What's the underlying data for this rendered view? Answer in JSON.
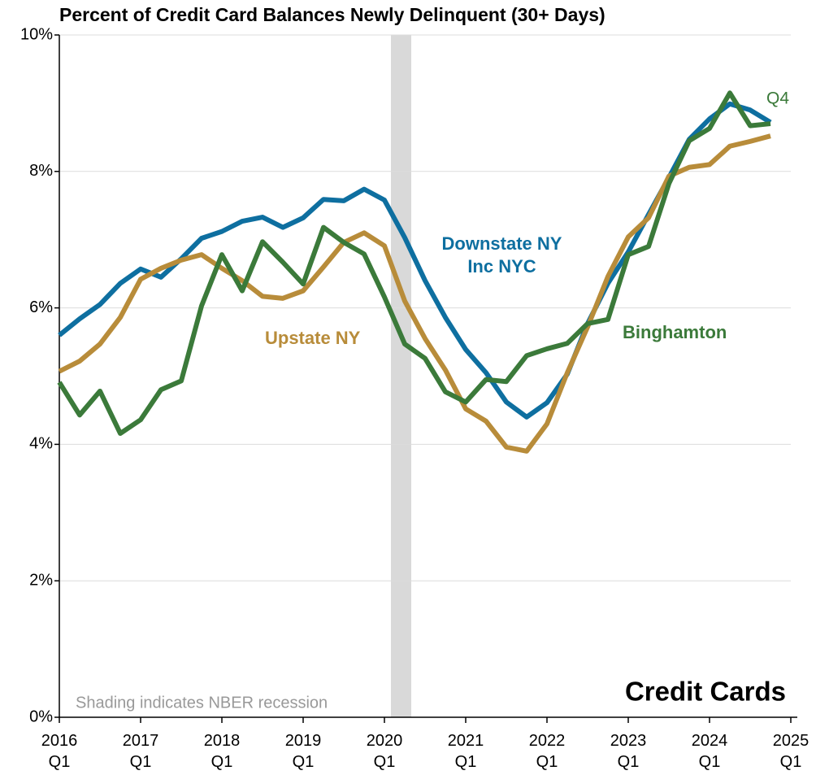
{
  "chart_data": {
    "type": "line",
    "title": "Percent of Credit Card Balances Newly Delinquent (30+ Days)",
    "x": [
      2016,
      2016.25,
      2016.5,
      2016.75,
      2017,
      2017.25,
      2017.5,
      2017.75,
      2018,
      2018.25,
      2018.5,
      2018.75,
      2019,
      2019.25,
      2019.5,
      2019.75,
      2020,
      2020.25,
      2020.5,
      2020.75,
      2021,
      2021.25,
      2021.5,
      2021.75,
      2022,
      2022.25,
      2022.5,
      2022.75,
      2023,
      2023.25,
      2023.5,
      2023.75,
      2024,
      2024.25,
      2024.5,
      2024.75
    ],
    "series": [
      {
        "name": "Downstate NY Inc NYC",
        "color": "#0e6fa0",
        "values": [
          5.6,
          5.84,
          6.05,
          6.36,
          6.57,
          6.45,
          6.72,
          7.02,
          7.12,
          7.27,
          7.33,
          7.18,
          7.32,
          7.59,
          7.57,
          7.74,
          7.58,
          7.03,
          6.4,
          5.86,
          5.39,
          5.05,
          4.62,
          4.4,
          4.61,
          5.03,
          5.77,
          6.36,
          6.82,
          7.37,
          7.91,
          8.47,
          8.77,
          8.99,
          8.9,
          8.72
        ]
      },
      {
        "name": "Upstate NY",
        "color": "#b88c3a",
        "values": [
          5.07,
          5.22,
          5.47,
          5.86,
          6.42,
          6.58,
          6.7,
          6.78,
          6.58,
          6.4,
          6.17,
          6.14,
          6.25,
          6.6,
          6.96,
          7.1,
          6.91,
          6.1,
          5.55,
          5.09,
          4.52,
          4.34,
          3.96,
          3.9,
          4.3,
          5.05,
          5.72,
          6.46,
          7.04,
          7.32,
          7.93,
          8.06,
          8.1,
          8.37,
          8.44,
          8.52
        ]
      },
      {
        "name": "Binghamton",
        "color": "#3b7a3a",
        "values": [
          4.91,
          4.43,
          4.78,
          4.16,
          4.36,
          4.8,
          4.93,
          6.03,
          6.78,
          6.25,
          6.97,
          6.67,
          6.35,
          7.18,
          6.96,
          6.79,
          6.16,
          5.47,
          5.26,
          4.77,
          4.62,
          4.95,
          4.92,
          5.3,
          5.4,
          5.48,
          5.77,
          5.83,
          6.78,
          6.9,
          7.82,
          8.45,
          8.63,
          9.15,
          8.67,
          8.7
        ]
      }
    ],
    "xlim": [
      2016,
      2025
    ],
    "xticks": [
      {
        "value": 2016,
        "label": "2016 Q1"
      },
      {
        "value": 2017,
        "label": "2017 Q1"
      },
      {
        "value": 2018,
        "label": "2018 Q1"
      },
      {
        "value": 2019,
        "label": "2019 Q1"
      },
      {
        "value": 2020,
        "label": "2020 Q1"
      },
      {
        "value": 2021,
        "label": "2021 Q1"
      },
      {
        "value": 2022,
        "label": "2022 Q1"
      },
      {
        "value": 2023,
        "label": "2023 Q1"
      },
      {
        "value": 2024,
        "label": "2024 Q1"
      },
      {
        "value": 2025,
        "label": "2025 Q1"
      }
    ],
    "ylim": [
      0,
      10
    ],
    "yticks": [
      {
        "value": 0,
        "label": "0%"
      },
      {
        "value": 2,
        "label": "2%"
      },
      {
        "value": 4,
        "label": "4%"
      },
      {
        "value": 6,
        "label": "6%"
      },
      {
        "value": 8,
        "label": "8%"
      },
      {
        "value": 10,
        "label": "10%"
      }
    ],
    "grid": true,
    "recession": [
      2020.08,
      2020.33
    ],
    "recession_note": "Shading indicates NBER recession",
    "panel_label": "Credit Cards",
    "latest_label": "Q4"
  }
}
